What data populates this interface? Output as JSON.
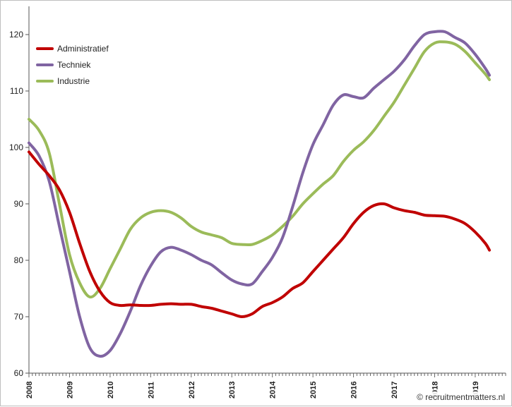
{
  "chart_data": {
    "type": "line",
    "title": "",
    "xlabel": "",
    "ylabel": "",
    "xlim": [
      2008,
      2019.75
    ],
    "ylim": [
      60,
      125
    ],
    "y_ticks": [
      60,
      70,
      80,
      90,
      100,
      110,
      120
    ],
    "x_tick_labels": [
      "2008",
      "2009",
      "2010",
      "2011",
      "2012",
      "2013",
      "2014",
      "2015",
      "2016",
      "2017",
      "2018",
      "2019"
    ],
    "legend_position": "top-left",
    "grid": false,
    "series": [
      {
        "name": "Administratief",
        "color": "#c00000",
        "x": [
          2008.0,
          2008.25,
          2008.5,
          2008.75,
          2009.0,
          2009.25,
          2009.5,
          2009.75,
          2010.0,
          2010.25,
          2010.5,
          2010.75,
          2011.0,
          2011.25,
          2011.5,
          2011.75,
          2012.0,
          2012.25,
          2012.5,
          2012.75,
          2013.0,
          2013.25,
          2013.5,
          2013.75,
          2014.0,
          2014.25,
          2014.5,
          2014.75,
          2015.0,
          2015.25,
          2015.5,
          2015.75,
          2016.0,
          2016.25,
          2016.5,
          2016.75,
          2017.0,
          2017.25,
          2017.5,
          2017.75,
          2018.0,
          2018.25,
          2018.5,
          2018.75,
          2019.0,
          2019.25,
          2019.35
        ],
        "y": [
          99.2,
          97.0,
          95.0,
          92.5,
          88.5,
          83.0,
          78.0,
          74.5,
          72.5,
          72.0,
          72.1,
          72.0,
          72.0,
          72.2,
          72.3,
          72.2,
          72.2,
          71.8,
          71.5,
          71.0,
          70.5,
          70.0,
          70.5,
          71.8,
          72.5,
          73.5,
          75.0,
          76.0,
          78.0,
          80.0,
          82.0,
          84.0,
          86.5,
          88.5,
          89.7,
          90.0,
          89.3,
          88.8,
          88.5,
          88.0,
          87.9,
          87.8,
          87.3,
          86.5,
          85.0,
          83.0,
          81.8
        ]
      },
      {
        "name": "Techniek",
        "color": "#8064a2",
        "x": [
          2008.0,
          2008.25,
          2008.5,
          2008.75,
          2009.0,
          2009.25,
          2009.5,
          2009.75,
          2010.0,
          2010.25,
          2010.5,
          2010.75,
          2011.0,
          2011.25,
          2011.5,
          2011.75,
          2012.0,
          2012.25,
          2012.5,
          2012.75,
          2013.0,
          2013.25,
          2013.5,
          2013.75,
          2014.0,
          2014.25,
          2014.5,
          2014.75,
          2015.0,
          2015.25,
          2015.5,
          2015.75,
          2016.0,
          2016.25,
          2016.5,
          2016.75,
          2017.0,
          2017.25,
          2017.5,
          2017.75,
          2018.0,
          2018.25,
          2018.5,
          2018.75,
          2019.0,
          2019.25,
          2019.35
        ],
        "y": [
          100.8,
          98.5,
          94.0,
          86.0,
          78.0,
          70.0,
          64.5,
          63.0,
          64.0,
          67.0,
          71.0,
          75.5,
          79.0,
          81.5,
          82.3,
          81.8,
          81.0,
          80.0,
          79.2,
          77.8,
          76.5,
          75.8,
          75.8,
          78.0,
          80.5,
          84.0,
          89.5,
          95.5,
          100.5,
          104.0,
          107.5,
          109.3,
          109.0,
          108.8,
          110.5,
          112.0,
          113.5,
          115.5,
          118.0,
          120.0,
          120.5,
          120.5,
          119.5,
          118.5,
          116.5,
          114.0,
          112.8
        ]
      },
      {
        "name": "Industrie",
        "color": "#9bbb59",
        "x": [
          2008.0,
          2008.25,
          2008.5,
          2008.75,
          2009.0,
          2009.25,
          2009.5,
          2009.75,
          2010.0,
          2010.25,
          2010.5,
          2010.75,
          2011.0,
          2011.25,
          2011.5,
          2011.75,
          2012.0,
          2012.25,
          2012.5,
          2012.75,
          2013.0,
          2013.25,
          2013.5,
          2013.75,
          2014.0,
          2014.25,
          2014.5,
          2014.75,
          2015.0,
          2015.25,
          2015.5,
          2015.75,
          2016.0,
          2016.25,
          2016.5,
          2016.75,
          2017.0,
          2017.25,
          2017.5,
          2017.75,
          2018.0,
          2018.25,
          2018.5,
          2018.75,
          2019.0,
          2019.25,
          2019.35
        ],
        "y": [
          105.0,
          103.0,
          99.0,
          90.0,
          81.0,
          76.0,
          73.5,
          75.0,
          78.5,
          82.0,
          85.5,
          87.5,
          88.5,
          88.8,
          88.5,
          87.5,
          86.0,
          85.0,
          84.5,
          84.0,
          83.0,
          82.8,
          82.8,
          83.5,
          84.5,
          86.0,
          87.8,
          90.0,
          91.8,
          93.5,
          95.0,
          97.5,
          99.5,
          101.0,
          103.0,
          105.5,
          108.0,
          111.0,
          114.0,
          117.0,
          118.5,
          118.7,
          118.3,
          117.0,
          115.0,
          113.0,
          112.0
        ]
      }
    ]
  },
  "watermark": {
    "icon": "copyright-icon",
    "text": "recruitmentmatters.nl"
  }
}
